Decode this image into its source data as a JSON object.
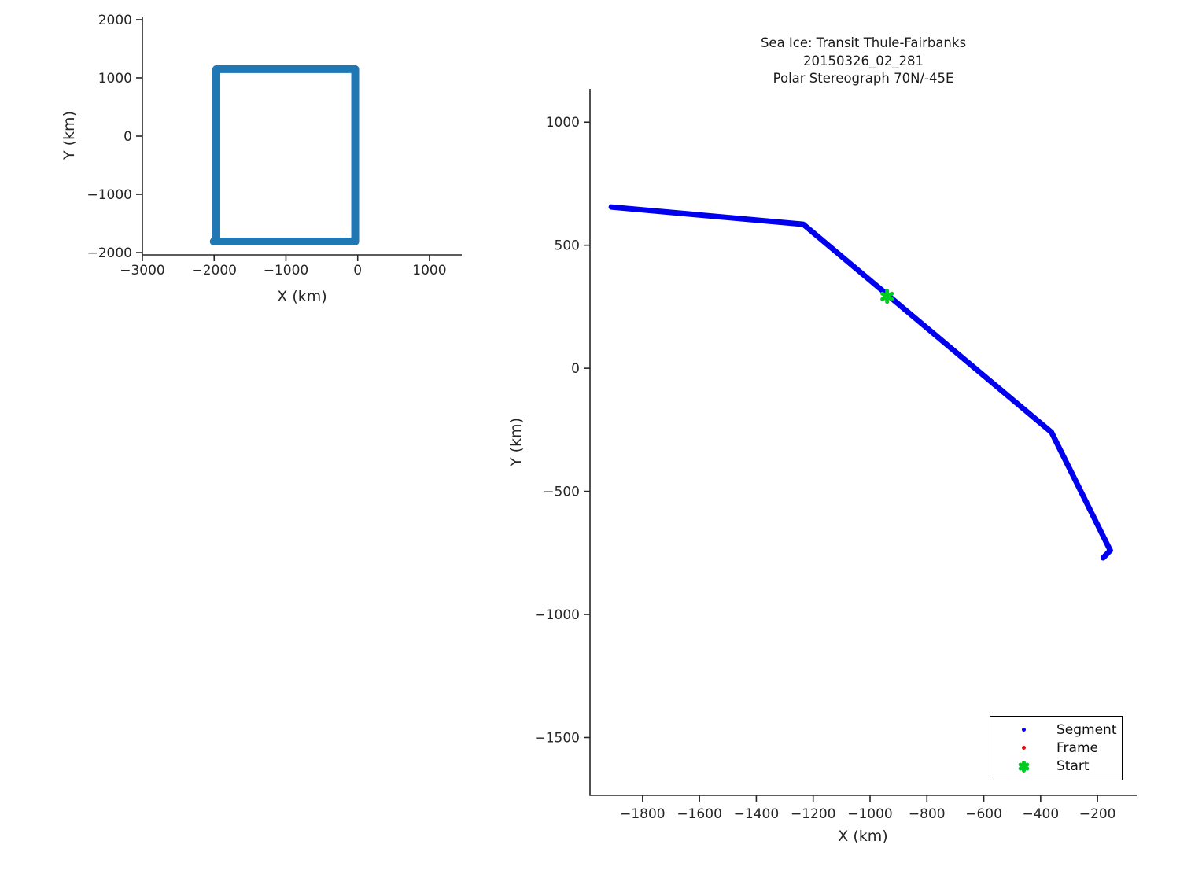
{
  "figure": {
    "background": "#ffffff",
    "text_color": "#262626",
    "axis_color": "#262626"
  },
  "chart_data": [
    {
      "id": "footprint-overview",
      "type": "line",
      "title": "",
      "xlabel": "X (km)",
      "ylabel": "Y (km)",
      "xlim": [
        -3000,
        1450
      ],
      "ylim": [
        -2040,
        2040
      ],
      "xticks": [
        -3000,
        -2000,
        -1000,
        0,
        1000
      ],
      "xtick_labels": [
        "−3000",
        "−2000",
        "−1000",
        "0",
        "1000"
      ],
      "yticks": [
        -2000,
        -1000,
        0,
        1000,
        2000
      ],
      "ytick_labels": [
        "−2000",
        "−1000",
        "0",
        "1000",
        "2000"
      ],
      "grid": false,
      "legend": null,
      "series": [
        {
          "name": "footprint-box",
          "color": "#1f77b4",
          "stroke_width": 10,
          "points": [
            [
              -1970,
              -1745
            ],
            [
              -1970,
              1150
            ],
            [
              -35,
              1150
            ],
            [
              -35,
              -1810
            ],
            [
              -2005,
              -1810
            ],
            [
              -1970,
              -1745
            ]
          ]
        }
      ]
    },
    {
      "id": "transit-route",
      "type": "line",
      "title_lines": [
        "Sea Ice: Transit Thule-Fairbanks",
        "20150326_02_281",
        "Polar Stereograph 70N/-45E"
      ],
      "xlabel": "X (km)",
      "ylabel": "Y (km)",
      "xlim": [
        -1985,
        -62
      ],
      "ylim": [
        -1735,
        1135
      ],
      "xticks": [
        -1800,
        -1600,
        -1400,
        -1200,
        -1000,
        -800,
        -600,
        -400,
        -200
      ],
      "xtick_labels": [
        "−1800",
        "−1600",
        "−1400",
        "−1200",
        "−1000",
        "−800",
        "−600",
        "−400",
        "−200"
      ],
      "yticks": [
        1000,
        500,
        0,
        -500,
        -1000,
        -1500
      ],
      "ytick_labels": [
        "1000",
        "500",
        "0",
        "−500",
        "−1000",
        "−1500"
      ],
      "grid": false,
      "series": [
        {
          "name": "segment-path",
          "color": "#0000ee",
          "stroke_width": 7,
          "points": [
            [
              -1910,
              655
            ],
            [
              -1235,
              585
            ],
            [
              -362,
              -260
            ],
            [
              -155,
              -740
            ],
            [
              -180,
              -770
            ]
          ]
        }
      ],
      "markers": [
        {
          "name": "start-marker",
          "shape": "asterisk",
          "color": "#00cc22",
          "point": [
            -940,
            292
          ],
          "size": 14
        }
      ],
      "legend": {
        "position": "lower-right",
        "entries": [
          {
            "label": "Segment",
            "marker": "dot",
            "color": "#0000dd"
          },
          {
            "label": "Frame",
            "marker": "dot",
            "color": "#e01010"
          },
          {
            "label": "Start",
            "marker": "asterisk",
            "color": "#00cc22"
          }
        ]
      }
    }
  ]
}
